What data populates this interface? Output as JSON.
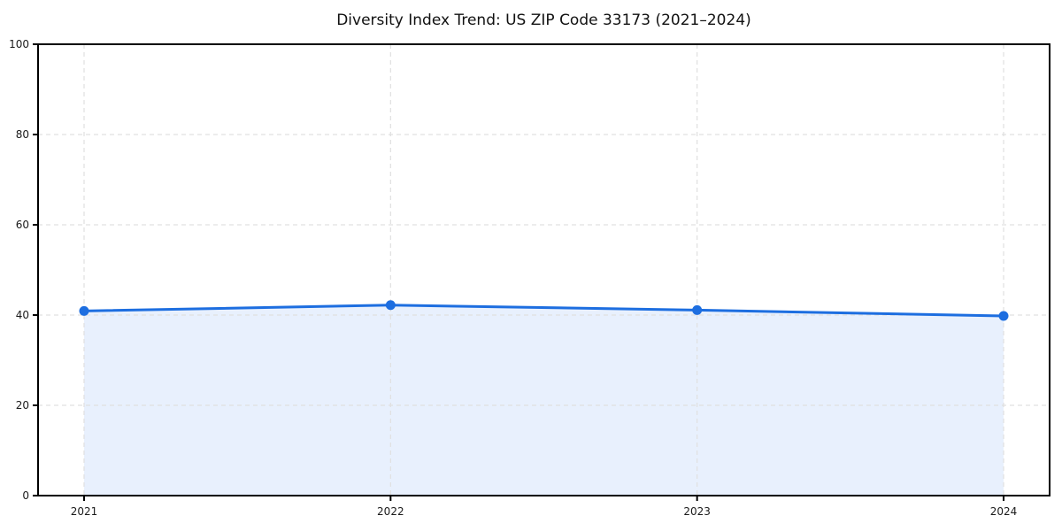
{
  "chart_data": {
    "type": "area",
    "title": "Diversity Index Trend: US ZIP Code 33173 (2021–2024)",
    "categories": [
      "2021",
      "2022",
      "2023",
      "2024"
    ],
    "series": [
      {
        "name": "Diversity Index",
        "values": [
          40.9,
          42.2,
          41.1,
          39.8
        ]
      }
    ],
    "xlabel": "",
    "ylabel": "",
    "ylim": [
      0,
      100
    ],
    "yticks": [
      0,
      20,
      40,
      60,
      80,
      100
    ],
    "grid": true,
    "grid_style": "dashed",
    "legend": false,
    "colors": {
      "line": "#1d6ee0",
      "marker": "#1d6ee0",
      "fill": "#e8f0fd",
      "grid": "#e0e0e0",
      "spine": "#000000",
      "tick_text": "#1a1a1a",
      "title_text": "#111111",
      "background": "#ffffff"
    }
  }
}
